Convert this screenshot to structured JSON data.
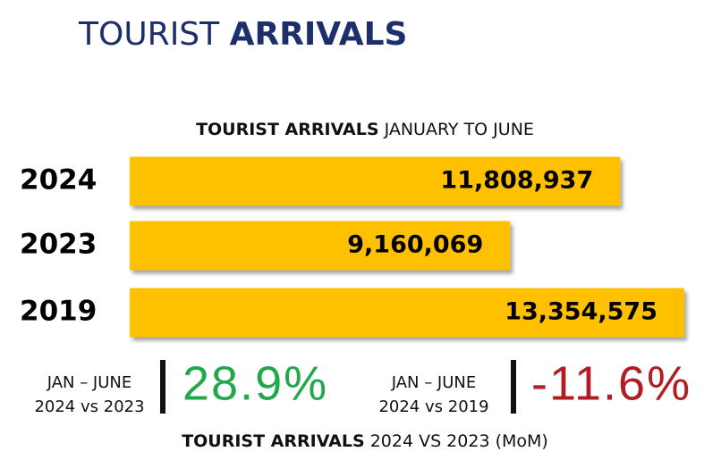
{
  "chart_data": {
    "type": "bar",
    "orientation": "horizontal",
    "title": [
      "TOURIST",
      "ARRIVALS"
    ],
    "subtitle": [
      "TOURIST ARRIVALS",
      "JANUARY TO JUNE"
    ],
    "categories": [
      "2024",
      "2023",
      "2019"
    ],
    "values": [
      11808937,
      9160069,
      13354575
    ],
    "value_labels": [
      "11,808,937",
      "9,160,069",
      "13,354,575"
    ],
    "color": "#ffc000",
    "annotations": [
      {
        "lines": [
          "JAN – JUNE",
          "2024 vs 2023"
        ],
        "label": "28.9%",
        "color": "#21a84a"
      },
      {
        "lines": [
          "JAN – JUNE",
          "2024 vs 2019"
        ],
        "label": "-11.6%",
        "color": "#b01e23"
      }
    ],
    "footer": [
      "TOURIST ARRIVALS",
      "2024 VS 2023 (MoM)"
    ]
  }
}
